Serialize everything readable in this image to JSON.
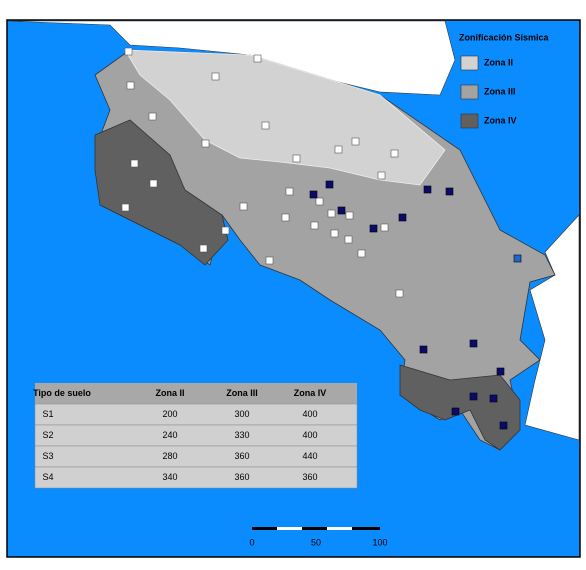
{
  "legend": {
    "title": "Zonificación Sísmica",
    "items": [
      "Zona II",
      "Zona III",
      "Zona IV"
    ]
  },
  "table": {
    "header": [
      "Tipo de suelo",
      "Zona II",
      "Zona III",
      "Zona IV"
    ],
    "rows": [
      [
        "S1",
        200,
        300,
        400
      ],
      [
        "S2",
        240,
        330,
        400
      ],
      [
        "S3",
        280,
        360,
        440
      ],
      [
        "S4",
        340,
        360,
        360
      ]
    ]
  },
  "scale_bar": {
    "labels": [
      0,
      50,
      100
    ]
  }
}
